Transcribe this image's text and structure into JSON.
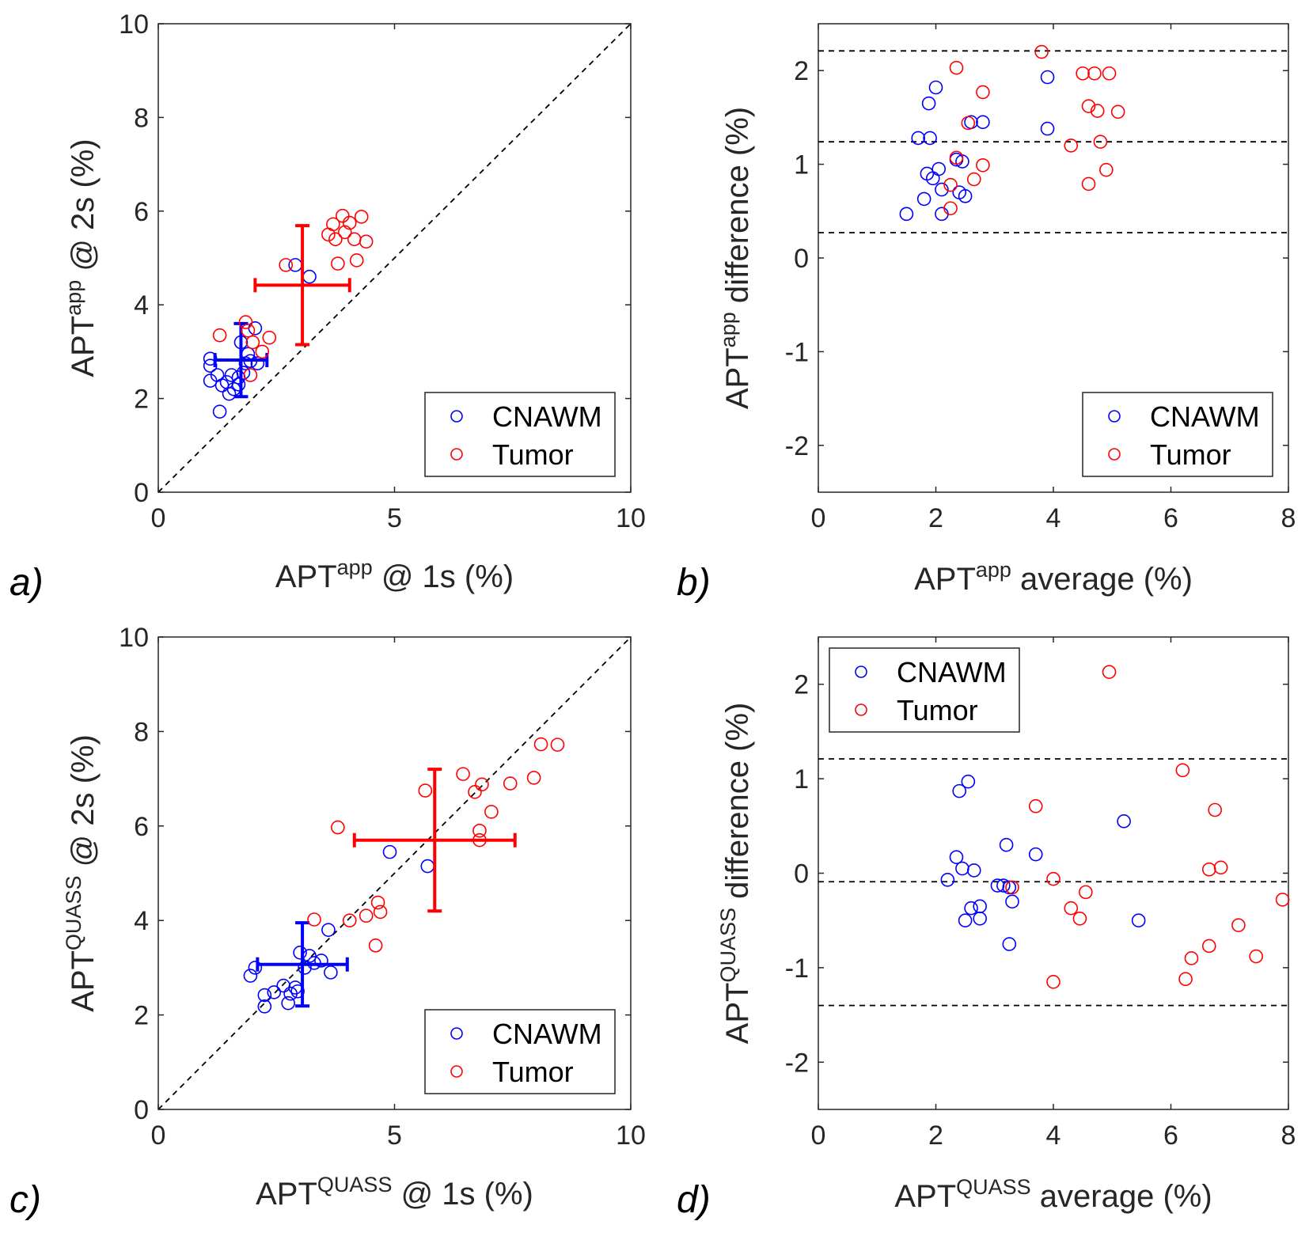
{
  "figure": {
    "colors": {
      "cnawm": "#0000ff",
      "tumor": "#ff0000",
      "axis": "#262626",
      "reference": "#000000"
    }
  },
  "chart_data": [
    {
      "panel": "a)",
      "type": "scatter",
      "title": "",
      "xlabel": {
        "base": "APT",
        "sup": "app",
        "rest": " @ 1s (%)"
      },
      "ylabel": {
        "base": "APT",
        "sup": "app",
        "rest": " @ 2s (%)"
      },
      "xlim": [
        0,
        10
      ],
      "ylim": [
        0,
        10
      ],
      "xticks": [
        0,
        5,
        10
      ],
      "yticks": [
        0,
        2,
        4,
        6,
        8,
        10
      ],
      "xtick_labels": [
        "0",
        "5",
        "10"
      ],
      "ytick_labels": [
        "0",
        "2",
        "4",
        "6",
        "8",
        "10"
      ],
      "grid": false,
      "identity_line": true,
      "legend": {
        "position": "bottom-right",
        "entries": [
          "CNAWM",
          "Tumor"
        ]
      },
      "series": [
        {
          "name": "CNAWM",
          "color": "#0000ff",
          "points": [
            [
              1.1,
              2.85
            ],
            [
              1.1,
              2.7
            ],
            [
              1.1,
              2.38
            ],
            [
              1.25,
              2.5
            ],
            [
              1.3,
              1.72
            ],
            [
              1.35,
              2.28
            ],
            [
              1.45,
              2.35
            ],
            [
              1.5,
              2.1
            ],
            [
              1.55,
              2.5
            ],
            [
              1.6,
              2.2
            ],
            [
              1.7,
              2.3
            ],
            [
              1.7,
              2.45
            ],
            [
              1.75,
              3.2
            ],
            [
              1.8,
              2.55
            ],
            [
              1.85,
              2.75
            ],
            [
              1.9,
              2.95
            ],
            [
              1.95,
              2.8
            ],
            [
              2.05,
              3.5
            ],
            [
              2.1,
              2.75
            ],
            [
              2.9,
              4.85
            ],
            [
              3.2,
              4.6
            ]
          ],
          "mean": [
            1.75,
            2.82
          ],
          "err_x": 0.55,
          "err_y": 0.78
        },
        {
          "name": "Tumor",
          "color": "#ff0000",
          "points": [
            [
              1.3,
              3.35
            ],
            [
              1.85,
              3.63
            ],
            [
              1.9,
              3.45
            ],
            [
              1.95,
              2.5
            ],
            [
              2.0,
              3.2
            ],
            [
              2.2,
              3.0
            ],
            [
              2.35,
              3.3
            ],
            [
              2.7,
              4.85
            ],
            [
              3.6,
              5.5
            ],
            [
              3.7,
              5.72
            ],
            [
              3.75,
              5.4
            ],
            [
              3.8,
              4.88
            ],
            [
              3.9,
              5.9
            ],
            [
              3.95,
              5.55
            ],
            [
              4.05,
              5.75
            ],
            [
              4.15,
              5.4
            ],
            [
              4.2,
              4.95
            ],
            [
              4.3,
              5.88
            ],
            [
              4.4,
              5.35
            ]
          ],
          "mean": [
            3.05,
            4.42
          ],
          "err_x": 1.0,
          "err_y": 1.27
        }
      ]
    },
    {
      "panel": "b)",
      "type": "scatter",
      "title": "",
      "xlabel": {
        "base": "APT",
        "sup": "app",
        "rest": " average (%)"
      },
      "ylabel": {
        "base": "APT",
        "sup": "app",
        "rest": " difference (%)"
      },
      "xlim": [
        0,
        8
      ],
      "ylim": [
        -2.5,
        2.5
      ],
      "xticks": [
        0,
        2,
        4,
        6,
        8
      ],
      "yticks": [
        -2,
        -1,
        0,
        1,
        2
      ],
      "xtick_labels": [
        "0",
        "2",
        "4",
        "6",
        "8"
      ],
      "ytick_labels": [
        "-2",
        "-1",
        "0",
        "1",
        "2"
      ],
      "grid": false,
      "hlines": [
        2.21,
        1.24,
        0.27
      ],
      "legend": {
        "position": "bottom-right",
        "entries": [
          "CNAWM",
          "Tumor"
        ]
      },
      "series": [
        {
          "name": "CNAWM",
          "color": "#0000ff",
          "points": [
            [
              1.5,
              0.47
            ],
            [
              1.7,
              1.28
            ],
            [
              1.8,
              0.63
            ],
            [
              1.85,
              0.9
            ],
            [
              1.88,
              1.65
            ],
            [
              1.9,
              1.28
            ],
            [
              1.95,
              0.85
            ],
            [
              2.0,
              1.82
            ],
            [
              2.05,
              0.95
            ],
            [
              2.1,
              0.47
            ],
            [
              2.1,
              0.73
            ],
            [
              2.35,
              1.05
            ],
            [
              2.4,
              0.7
            ],
            [
              2.45,
              1.03
            ],
            [
              2.5,
              0.66
            ],
            [
              2.6,
              1.45
            ],
            [
              2.8,
              1.45
            ],
            [
              3.9,
              1.93
            ],
            [
              3.9,
              1.38
            ]
          ]
        },
        {
          "name": "Tumor",
          "color": "#ff0000",
          "points": [
            [
              2.25,
              0.78
            ],
            [
              2.25,
              0.53
            ],
            [
              2.35,
              2.03
            ],
            [
              2.35,
              1.07
            ],
            [
              2.55,
              1.44
            ],
            [
              2.65,
              0.84
            ],
            [
              2.8,
              1.77
            ],
            [
              2.8,
              0.99
            ],
            [
              3.8,
              2.2
            ],
            [
              4.3,
              1.2
            ],
            [
              4.5,
              1.97
            ],
            [
              4.6,
              0.79
            ],
            [
              4.6,
              1.62
            ],
            [
              4.7,
              1.97
            ],
            [
              4.75,
              1.57
            ],
            [
              4.8,
              1.24
            ],
            [
              4.9,
              0.94
            ],
            [
              4.95,
              1.97
            ],
            [
              5.1,
              1.56
            ]
          ]
        }
      ]
    },
    {
      "panel": "c)",
      "type": "scatter",
      "title": "",
      "xlabel": {
        "base": "APT",
        "sup": "QUASS",
        "rest": " @ 1s (%)"
      },
      "ylabel": {
        "base": "APT",
        "sup": "QUASS",
        "rest": " @ 2s (%)"
      },
      "xlim": [
        0,
        10
      ],
      "ylim": [
        0,
        10
      ],
      "xticks": [
        0,
        5,
        10
      ],
      "yticks": [
        0,
        2,
        4,
        6,
        8,
        10
      ],
      "xtick_labels": [
        "0",
        "5",
        "10"
      ],
      "ytick_labels": [
        "0",
        "2",
        "4",
        "6",
        "8",
        "10"
      ],
      "grid": false,
      "identity_line": true,
      "legend": {
        "position": "bottom-right",
        "entries": [
          "CNAWM",
          "Tumor"
        ]
      },
      "series": [
        {
          "name": "CNAWM",
          "color": "#0000ff",
          "points": [
            [
              1.95,
              2.83
            ],
            [
              2.05,
              3.0
            ],
            [
              2.25,
              2.18
            ],
            [
              2.25,
              2.42
            ],
            [
              2.45,
              2.48
            ],
            [
              2.65,
              2.62
            ],
            [
              2.75,
              2.25
            ],
            [
              2.8,
              2.45
            ],
            [
              2.9,
              2.58
            ],
            [
              2.95,
              2.5
            ],
            [
              3.0,
              3.32
            ],
            [
              3.1,
              3.0
            ],
            [
              3.2,
              3.25
            ],
            [
              3.3,
              3.1
            ],
            [
              3.45,
              3.15
            ],
            [
              3.6,
              3.8
            ],
            [
              3.65,
              2.9
            ],
            [
              4.9,
              5.45
            ],
            [
              5.7,
              5.15
            ]
          ],
          "mean": [
            3.05,
            3.07
          ],
          "err_x": 0.95,
          "err_y": 0.88
        },
        {
          "name": "Tumor",
          "color": "#ff0000",
          "points": [
            [
              3.3,
              4.02
            ],
            [
              3.8,
              5.97
            ],
            [
              4.05,
              4.0
            ],
            [
              4.4,
              4.1
            ],
            [
              4.6,
              3.47
            ],
            [
              4.65,
              4.38
            ],
            [
              4.7,
              4.18
            ],
            [
              5.65,
              6.75
            ],
            [
              6.45,
              7.1
            ],
            [
              6.7,
              6.72
            ],
            [
              6.8,
              5.9
            ],
            [
              6.8,
              5.7
            ],
            [
              6.85,
              6.88
            ],
            [
              7.05,
              6.3
            ],
            [
              7.45,
              6.9
            ],
            [
              7.95,
              7.02
            ],
            [
              8.1,
              7.73
            ],
            [
              8.45,
              7.72
            ]
          ],
          "mean": [
            5.85,
            5.7
          ],
          "err_x": 1.7,
          "err_y": 1.5
        }
      ]
    },
    {
      "panel": "d)",
      "type": "scatter",
      "title": "",
      "xlabel": {
        "base": "APT",
        "sup": "QUASS",
        "rest": " average (%)"
      },
      "ylabel": {
        "base": "APT",
        "sup": "QUASS",
        "rest": " difference (%)"
      },
      "xlim": [
        0,
        8
      ],
      "ylim": [
        -2.5,
        2.5
      ],
      "xticks": [
        0,
        2,
        4,
        6,
        8
      ],
      "yticks": [
        -2,
        -1,
        0,
        1,
        2
      ],
      "xtick_labels": [
        "0",
        "2",
        "4",
        "6",
        "8"
      ],
      "ytick_labels": [
        "-2",
        "-1",
        "0",
        "1",
        "2"
      ],
      "grid": false,
      "hlines": [
        1.21,
        -0.09,
        -1.4
      ],
      "legend": {
        "position": "top-left",
        "entries": [
          "CNAWM",
          "Tumor"
        ]
      },
      "series": [
        {
          "name": "CNAWM",
          "color": "#0000ff",
          "points": [
            [
              2.2,
              -0.07
            ],
            [
              2.35,
              0.17
            ],
            [
              2.4,
              0.87
            ],
            [
              2.45,
              0.05
            ],
            [
              2.5,
              -0.5
            ],
            [
              2.55,
              0.97
            ],
            [
              2.6,
              -0.37
            ],
            [
              2.65,
              0.03
            ],
            [
              2.75,
              -0.35
            ],
            [
              2.75,
              -0.48
            ],
            [
              3.05,
              -0.13
            ],
            [
              3.15,
              -0.13
            ],
            [
              3.2,
              0.3
            ],
            [
              3.25,
              -0.15
            ],
            [
              3.25,
              -0.75
            ],
            [
              3.3,
              -0.3
            ],
            [
              3.7,
              0.2
            ],
            [
              5.2,
              0.55
            ],
            [
              5.45,
              -0.5
            ]
          ]
        },
        {
          "name": "Tumor",
          "color": "#ff0000",
          "points": [
            [
              3.3,
              -0.15
            ],
            [
              3.7,
              0.71
            ],
            [
              4.0,
              -0.06
            ],
            [
              4.0,
              -1.15
            ],
            [
              4.3,
              -0.37
            ],
            [
              4.45,
              -0.48
            ],
            [
              4.55,
              -0.2
            ],
            [
              4.95,
              2.13
            ],
            [
              6.2,
              1.09
            ],
            [
              6.25,
              -1.12
            ],
            [
              6.35,
              -0.9
            ],
            [
              6.65,
              0.04
            ],
            [
              6.65,
              -0.77
            ],
            [
              6.75,
              0.67
            ],
            [
              6.85,
              0.06
            ],
            [
              7.15,
              -0.55
            ],
            [
              7.45,
              -0.88
            ],
            [
              7.9,
              -0.28
            ]
          ]
        }
      ]
    }
  ]
}
